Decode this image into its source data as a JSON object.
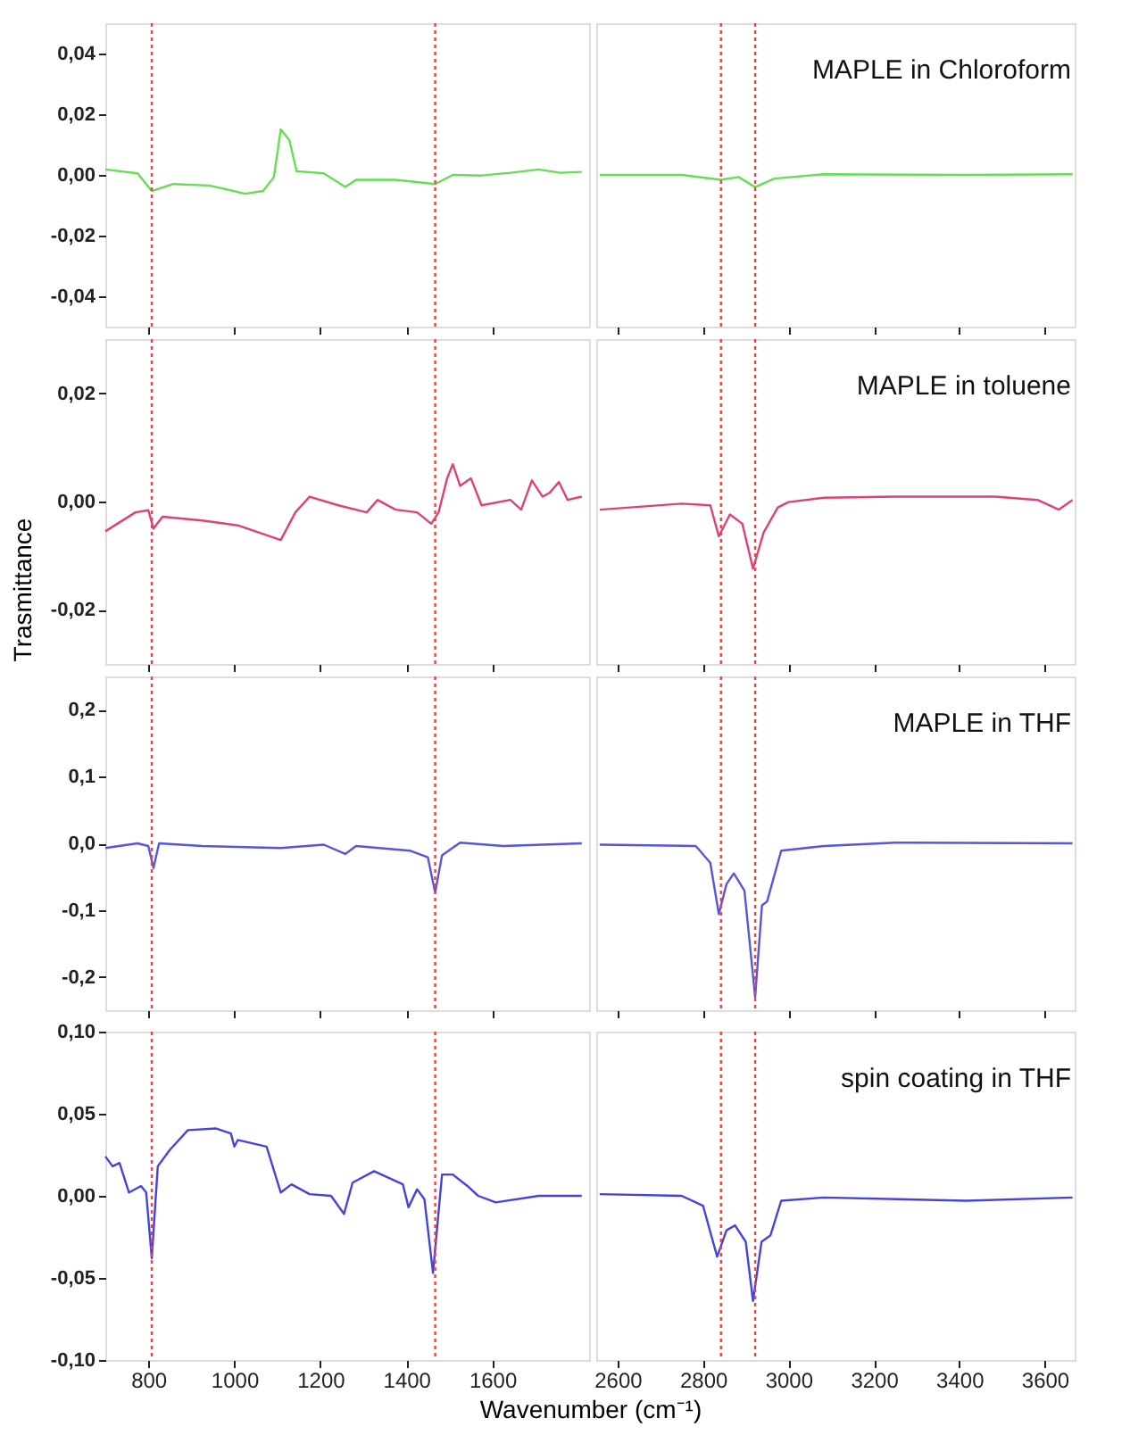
{
  "chart_data": [
    {
      "type": "line",
      "x": [
        700,
        775,
        808,
        858,
        942,
        1025,
        1067,
        1092,
        1108,
        1128,
        1145,
        1208,
        1258,
        1283,
        1375,
        1467,
        1508,
        1575,
        1642,
        1708,
        1758,
        1808
      ],
      "series": [
        {
          "color": "#66dd55",
          "values": [
            0.0018,
            0.0005,
            -0.0053,
            -0.003,
            -0.0035,
            -0.0062,
            -0.0053,
            -0.0007,
            0.015,
            0.0115,
            0.0012,
            0.0005,
            -0.004,
            -0.0016,
            -0.0016,
            -0.003,
            0,
            -0.0002,
            0.0007,
            0.0018,
            0.0007,
            0.001
          ]
        }
      ],
      "xlim": [
        700,
        1825
      ],
      "xticks": [
        800,
        1000,
        1200,
        1400,
        1600
      ],
      "ylim": [
        -0.05,
        0.05
      ],
      "yticks": [
        {
          "value": -0.04,
          "label": "-0,04"
        },
        {
          "value": -0.02,
          "label": "-0,02"
        },
        {
          "value": 0,
          "label": "0,00"
        },
        {
          "value": 0.02,
          "label": "0,02"
        },
        {
          "value": 0.04,
          "label": "0,04"
        }
      ],
      "tick_labels": "y",
      "grid": false,
      "ref_lines": [
        {
          "axis": "x",
          "value": 808,
          "color": "#ee4444",
          "line_style": "dotted"
        },
        {
          "axis": "x",
          "value": 1467,
          "color": "#ee4444",
          "line_style": "dotted"
        }
      ]
    },
    {
      "type": "line",
      "x": [
        2558,
        2750,
        2842,
        2883,
        2922,
        2967,
        3083,
        3417,
        3665
      ],
      "series": [
        {
          "color": "#66dd55",
          "values": [
            0,
            0,
            -0.0016,
            -0.0007,
            -0.004,
            -0.0012,
            0.0002,
            0,
            0.0002
          ]
        }
      ],
      "xlim": [
        2550,
        3670
      ],
      "xticks": [
        2600,
        2800,
        3000,
        3200,
        3400,
        3600
      ],
      "ylim": [
        -0.05,
        0.05
      ],
      "tick_labels": false,
      "grid": false,
      "annotations": [
        "MAPLE in Chloroform"
      ],
      "ref_lines": [
        {
          "axis": "x",
          "value": 2842,
          "color": "#ee4444",
          "line_style": "dotted"
        },
        {
          "axis": "x",
          "value": 2922,
          "color": "#ee4444",
          "line_style": "dotted"
        }
      ]
    },
    {
      "type": "line",
      "x": [
        700,
        770,
        800,
        812,
        833,
        925,
        1008,
        1108,
        1142,
        1175,
        1242,
        1308,
        1333,
        1375,
        1425,
        1458,
        1475,
        1495,
        1508,
        1525,
        1550,
        1575,
        1642,
        1667,
        1692,
        1717,
        1733,
        1755,
        1775,
        1808
      ],
      "series": [
        {
          "color": "#e0407a",
          "values": [
            -0.0055,
            -0.002,
            -0.0016,
            -0.005,
            -0.0028,
            -0.0035,
            -0.0044,
            -0.0071,
            -0.002,
            0.0009,
            -0.0007,
            -0.002,
            0.0003,
            -0.0015,
            -0.002,
            -0.0041,
            -0.002,
            0.0043,
            0.0069,
            0.0029,
            0.0043,
            -0.0007,
            0.0003,
            -0.0015,
            0.0039,
            0.0009,
            0.0016,
            0.0036,
            0.0003,
            0.0009
          ]
        }
      ],
      "xlim": [
        700,
        1825
      ],
      "xticks": [
        800,
        1000,
        1200,
        1400,
        1600
      ],
      "ylim": [
        -0.03,
        0.03
      ],
      "yticks": [
        {
          "value": -0.02,
          "label": "-0,02"
        },
        {
          "value": 0,
          "label": "0,00"
        },
        {
          "value": 0.02,
          "label": "0,02"
        }
      ],
      "tick_labels": "y",
      "grid": false,
      "ylabel": "Trasmittance",
      "ref_lines": [
        {
          "axis": "x",
          "value": 808,
          "color": "#ee4444",
          "line_style": "dotted"
        },
        {
          "axis": "x",
          "value": 1467,
          "color": "#ee4444",
          "line_style": "dotted"
        }
      ]
    },
    {
      "type": "line",
      "x": [
        2558,
        2750,
        2817,
        2837,
        2863,
        2892,
        2917,
        2942,
        2975,
        3000,
        3083,
        3250,
        3483,
        3583,
        3633,
        3665
      ],
      "series": [
        {
          "color": "#e0407a",
          "values": [
            -0.0015,
            -0.0004,
            -0.0007,
            -0.0064,
            -0.0024,
            -0.0041,
            -0.0124,
            -0.0057,
            -0.0011,
            -0.0001,
            0.0007,
            0.0009,
            0.0009,
            0.0003,
            -0.0015,
            0.0003
          ]
        }
      ],
      "xlim": [
        2550,
        3670
      ],
      "xticks": [
        2600,
        2800,
        3000,
        3200,
        3400,
        3600
      ],
      "ylim": [
        -0.03,
        0.03
      ],
      "tick_labels": false,
      "grid": false,
      "annotations": [
        "MAPLE in toluene"
      ],
      "ref_lines": [
        {
          "axis": "x",
          "value": 2842,
          "color": "#ee4444",
          "line_style": "dotted"
        },
        {
          "axis": "x",
          "value": 2922,
          "color": "#ee4444",
          "line_style": "dotted"
        }
      ]
    },
    {
      "type": "line",
      "x": [
        700,
        775,
        800,
        812,
        825,
        925,
        1108,
        1208,
        1258,
        1283,
        1408,
        1450,
        1467,
        1483,
        1525,
        1625,
        1808
      ],
      "series": [
        {
          "color": "#5555dd",
          "values": [
            -0.007,
            0,
            -0.004,
            -0.037,
            0,
            -0.004,
            -0.007,
            -0.002,
            -0.016,
            -0.004,
            -0.011,
            -0.021,
            -0.074,
            -0.018,
            0.001,
            -0.004,
            0
          ]
        }
      ],
      "xlim": [
        700,
        1825
      ],
      "xticks": [
        800,
        1000,
        1200,
        1400,
        1600
      ],
      "ylim": [
        -0.25,
        0.25
      ],
      "yticks": [
        {
          "value": -0.2,
          "label": "-0,2"
        },
        {
          "value": -0.1,
          "label": "-0,1"
        },
        {
          "value": 0,
          "label": "0,0"
        },
        {
          "value": 0.1,
          "label": "0,1"
        },
        {
          "value": 0.2,
          "label": "0,2"
        }
      ],
      "tick_labels": "y",
      "grid": false,
      "ref_lines": [
        {
          "axis": "x",
          "value": 808,
          "color": "#ee4444",
          "line_style": "dotted"
        },
        {
          "axis": "x",
          "value": 1467,
          "color": "#ee4444",
          "line_style": "dotted"
        }
      ]
    },
    {
      "type": "line",
      "x": [
        2558,
        2783,
        2817,
        2837,
        2855,
        2872,
        2897,
        2922,
        2938,
        2950,
        2983,
        3083,
        3250,
        3665
      ],
      "series": [
        {
          "color": "#5555dd",
          "values": [
            -0.002,
            -0.004,
            -0.029,
            -0.106,
            -0.061,
            -0.045,
            -0.071,
            -0.23,
            -0.093,
            -0.087,
            -0.011,
            -0.004,
            0.001,
            0
          ]
        }
      ],
      "xlim": [
        2550,
        3670
      ],
      "xticks": [
        2600,
        2800,
        3000,
        3200,
        3400,
        3600
      ],
      "ylim": [
        -0.25,
        0.25
      ],
      "tick_labels": false,
      "grid": false,
      "annotations": [
        "MAPLE in THF"
      ],
      "ref_lines": [
        {
          "axis": "x",
          "value": 2842,
          "color": "#ee4444",
          "line_style": "dotted"
        },
        {
          "axis": "x",
          "value": 2922,
          "color": "#ee4444",
          "line_style": "dotted"
        }
      ]
    },
    {
      "type": "line",
      "x": [
        700,
        717,
        733,
        755,
        783,
        795,
        808,
        822,
        850,
        892,
        958,
        992,
        1000,
        1008,
        1075,
        1108,
        1133,
        1175,
        1225,
        1255,
        1275,
        1325,
        1392,
        1405,
        1425,
        1442,
        1462,
        1483,
        1508,
        1542,
        1567,
        1608,
        1708,
        1808
      ],
      "series": [
        {
          "color": "#4444dd",
          "values": [
            0.024,
            0.018,
            0.02,
            0.002,
            0.006,
            0.002,
            -0.038,
            0.018,
            0.028,
            0.04,
            0.041,
            0.038,
            0.03,
            0.034,
            0.03,
            0.002,
            0.007,
            0.001,
            0,
            -0.011,
            0.008,
            0.015,
            0.007,
            -0.007,
            0.004,
            -0.002,
            -0.047,
            0.013,
            0.013,
            0.006,
            0,
            -0.004,
            0,
            0
          ]
        }
      ],
      "xlim": [
        700,
        1825
      ],
      "xticks": [
        800,
        1000,
        1200,
        1400,
        1600
      ],
      "ylim": [
        -0.1,
        0.1
      ],
      "yticks": [
        {
          "value": -0.1,
          "label": "-0,10"
        },
        {
          "value": -0.05,
          "label": "-0,05"
        },
        {
          "value": 0,
          "label": "0,00"
        },
        {
          "value": 0.05,
          "label": "0,05"
        },
        {
          "value": 0.1,
          "label": "0,10"
        }
      ],
      "grid": false,
      "xlabel": "Wavenumber (cm⁻¹)",
      "ref_lines": [
        {
          "axis": "x",
          "value": 808,
          "color": "#ee4444",
          "line_style": "dotted"
        },
        {
          "axis": "x",
          "value": 1467,
          "color": "#ee4444",
          "line_style": "dotted"
        }
      ]
    },
    {
      "type": "line",
      "x": [
        2558,
        2750,
        2800,
        2833,
        2855,
        2875,
        2900,
        2917,
        2937,
        2958,
        2983,
        3083,
        3417,
        3665
      ],
      "series": [
        {
          "color": "#4444dd",
          "values": [
            0.001,
            0,
            -0.006,
            -0.037,
            -0.021,
            -0.018,
            -0.028,
            -0.064,
            -0.028,
            -0.024,
            -0.003,
            -0.001,
            -0.003,
            -0.001
          ]
        }
      ],
      "xlim": [
        2550,
        3670
      ],
      "xticks": [
        2600,
        2800,
        3000,
        3200,
        3400,
        3600
      ],
      "ylim": [
        -0.1,
        0.1
      ],
      "tick_labels": "x",
      "grid": false,
      "annotations": [
        "spin coating in THF"
      ],
      "ref_lines": [
        {
          "axis": "x",
          "value": 2842,
          "color": "#ee4444",
          "line_style": "dotted"
        },
        {
          "axis": "x",
          "value": 2922,
          "color": "#ee4444",
          "line_style": "dotted"
        }
      ]
    }
  ]
}
